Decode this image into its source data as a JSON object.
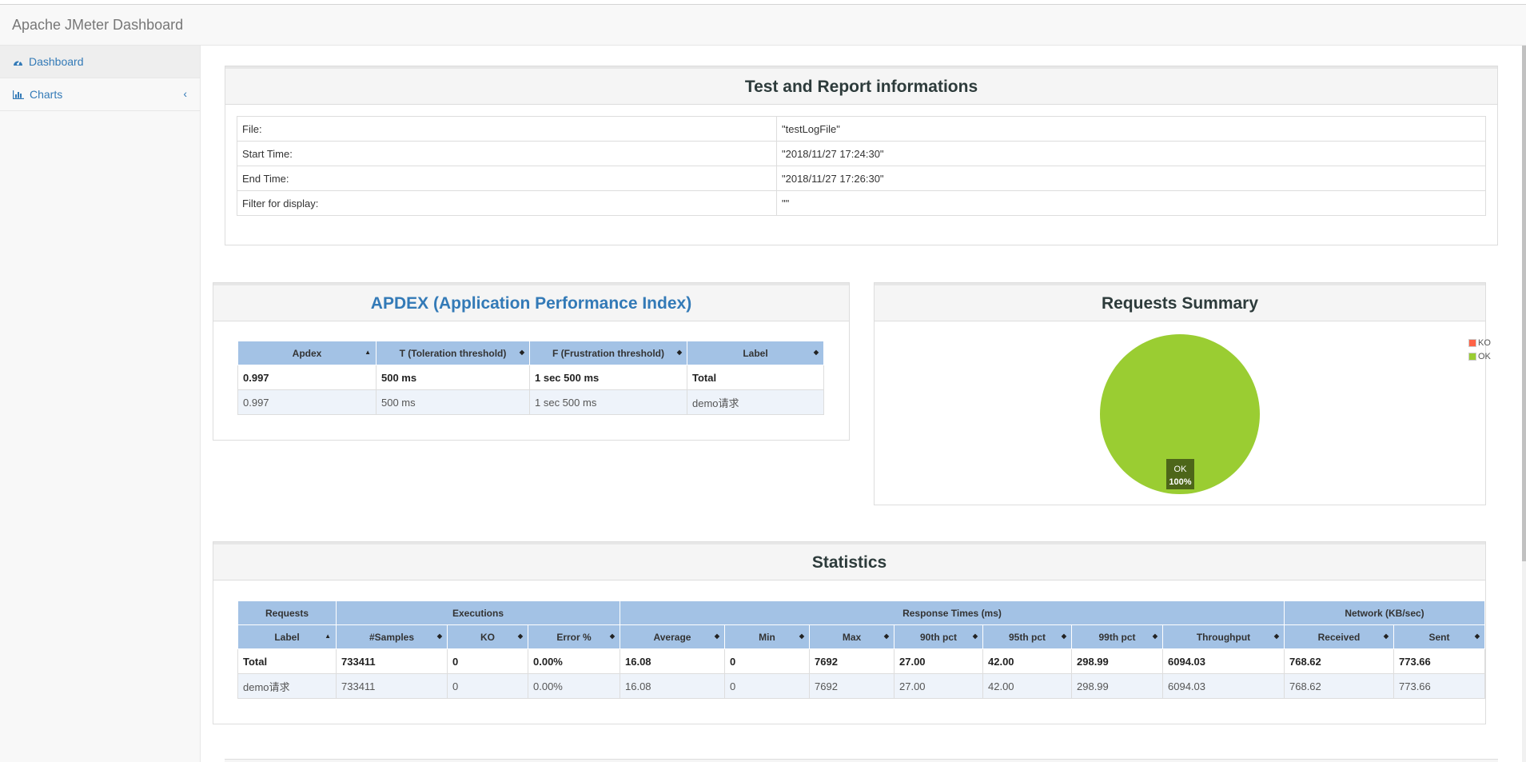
{
  "app": {
    "title": "Apache JMeter Dashboard"
  },
  "sidebar": {
    "items": [
      {
        "label": "Dashboard",
        "icon": "dashboard-icon"
      },
      {
        "label": "Charts",
        "icon": "bar-chart-icon",
        "chevron": "‹"
      }
    ]
  },
  "info": {
    "title": "Test and Report informations",
    "rows": [
      {
        "key": "File:",
        "value": "\"testLogFile\""
      },
      {
        "key": "Start Time:",
        "value": "\"2018/11/27 17:24:30\""
      },
      {
        "key": "End Time:",
        "value": "\"2018/11/27 17:26:30\""
      },
      {
        "key": "Filter for display:",
        "value": "\"\""
      }
    ]
  },
  "apdex": {
    "title": "APDEX (Application Performance Index)",
    "headers": [
      "Apdex",
      "T (Toleration threshold)",
      "F (Frustration threshold)",
      "Label"
    ],
    "rows": [
      [
        "0.997",
        "500 ms",
        "1 sec 500 ms",
        "Total"
      ],
      [
        "0.997",
        "500 ms",
        "1 sec 500 ms",
        "demo请求"
      ]
    ]
  },
  "summary": {
    "title": "Requests Summary",
    "legend": [
      {
        "label": "KO",
        "color": "#ff6347"
      },
      {
        "label": "OK",
        "color": "#9acd32"
      }
    ],
    "slice_label": "OK",
    "slice_pct": "100%",
    "ok_fraction": 1.0
  },
  "stats": {
    "title": "Statistics",
    "groups": [
      "Requests",
      "Executions",
      "Response Times (ms)",
      "Network (KB/sec)"
    ],
    "headers": [
      "Label",
      "#Samples",
      "KO",
      "Error %",
      "Average",
      "Min",
      "Max",
      "90th pct",
      "95th pct",
      "99th pct",
      "Throughput",
      "Received",
      "Sent"
    ],
    "rows": [
      [
        "Total",
        "733411",
        "0",
        "0.00%",
        "16.08",
        "0",
        "7692",
        "27.00",
        "42.00",
        "298.99",
        "6094.03",
        "768.62",
        "773.66"
      ],
      [
        "demo请求",
        "733411",
        "0",
        "0.00%",
        "16.08",
        "0",
        "7692",
        "27.00",
        "42.00",
        "298.99",
        "6094.03",
        "768.62",
        "773.66"
      ]
    ]
  },
  "colors": {
    "link": "#337ab7",
    "header": "#a3c2e5",
    "ok": "#9acd32",
    "ko": "#ff6347"
  }
}
